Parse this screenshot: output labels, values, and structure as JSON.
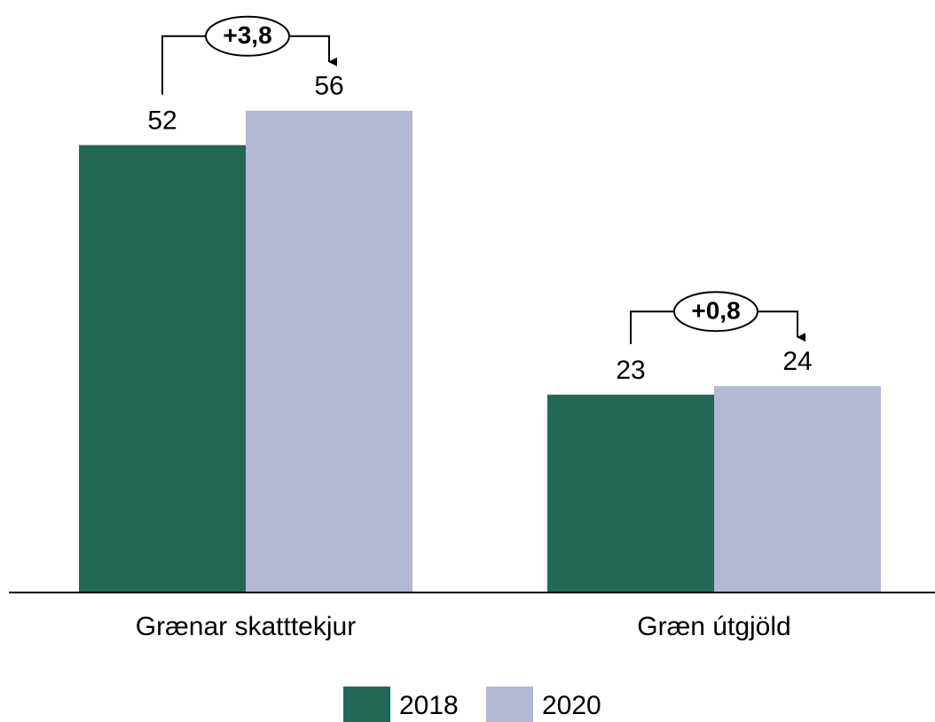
{
  "chart_data": {
    "type": "bar",
    "categories": [
      "Grænar skatttekjur",
      "Græn útgjöld"
    ],
    "series": [
      {
        "name": "2018",
        "color": "#216956",
        "values": [
          52,
          23
        ]
      },
      {
        "name": "2020",
        "color": "#b3b8d3",
        "values": [
          56,
          24
        ]
      }
    ],
    "annotations": [
      "+3,8",
      "+0,8"
    ],
    "legend": "bottom"
  }
}
